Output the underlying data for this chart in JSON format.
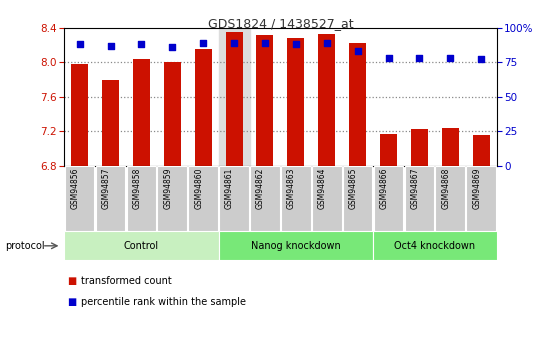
{
  "title": "GDS1824 / 1438527_at",
  "samples": [
    "GSM94856",
    "GSM94857",
    "GSM94858",
    "GSM94859",
    "GSM94860",
    "GSM94861",
    "GSM94862",
    "GSM94863",
    "GSM94864",
    "GSM94865",
    "GSM94866",
    "GSM94867",
    "GSM94868",
    "GSM94869"
  ],
  "transformed_count": [
    7.98,
    7.79,
    8.04,
    8.0,
    8.15,
    8.35,
    8.31,
    8.28,
    8.33,
    8.22,
    7.17,
    7.22,
    7.24,
    7.15
  ],
  "percentile_rank": [
    88,
    87,
    88,
    86,
    89,
    89,
    89,
    88,
    89,
    83,
    78,
    78,
    78,
    77
  ],
  "groups": [
    {
      "label": "Control",
      "start": 0,
      "end": 5,
      "color": "#c8f0c0"
    },
    {
      "label": "Nanog knockdown",
      "start": 5,
      "end": 10,
      "color": "#78e878"
    },
    {
      "label": "Oct4 knockdown",
      "start": 10,
      "end": 14,
      "color": "#78e878"
    }
  ],
  "ylim_left": [
    6.8,
    8.4
  ],
  "ylim_right": [
    0,
    100
  ],
  "yticks_left": [
    6.8,
    7.2,
    7.6,
    8.0,
    8.4
  ],
  "yticks_right": [
    0,
    25,
    50,
    75,
    100
  ],
  "bar_color": "#cc1100",
  "dot_color": "#0000cc",
  "ylabel_left_color": "#cc1100",
  "ylabel_right_color": "#0000cc",
  "grid_color": "#888888",
  "highlighted_col": 5,
  "label_bg_color": "#cccccc",
  "legend_items": [
    {
      "label": "transformed count",
      "color": "#cc1100"
    },
    {
      "label": "percentile rank within the sample",
      "color": "#0000cc"
    }
  ]
}
